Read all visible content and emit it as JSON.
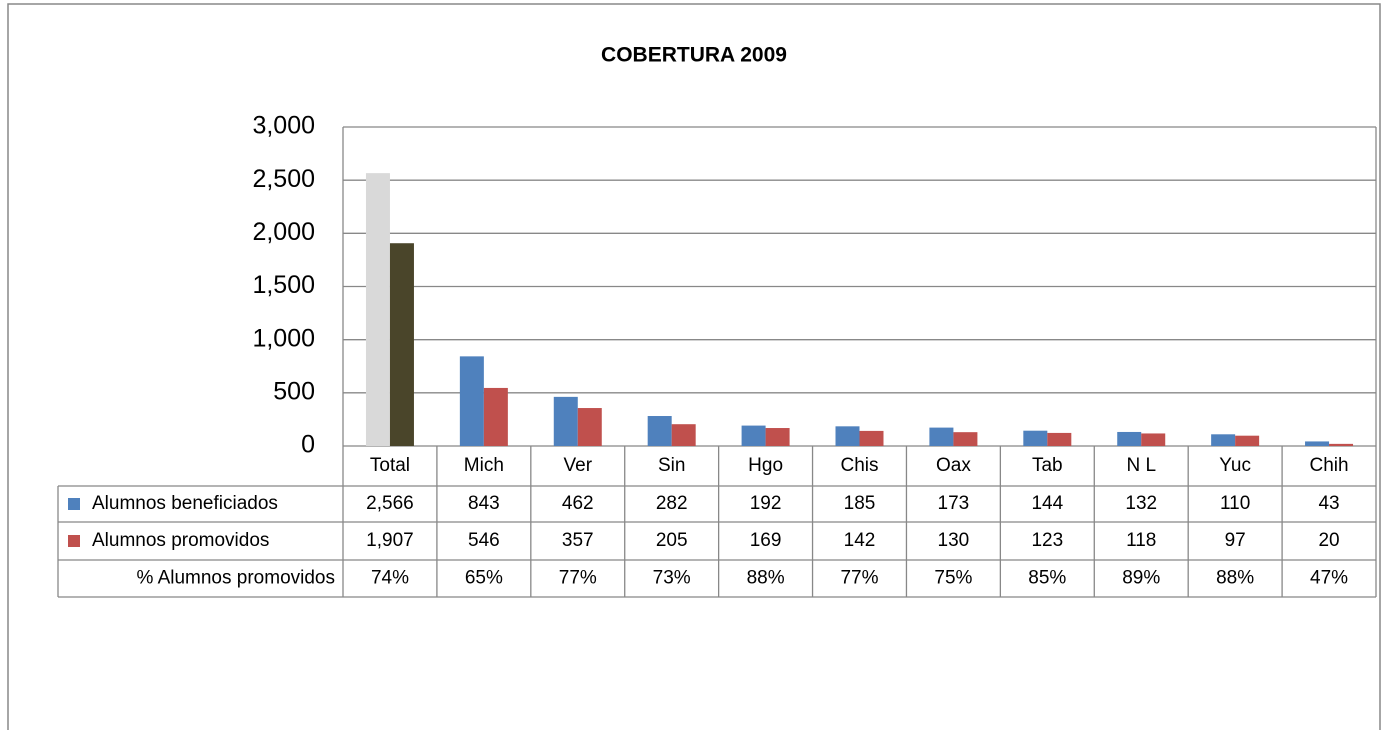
{
  "chart_data": {
    "type": "bar",
    "title": "COBERTURA 2009",
    "categories": [
      "Total",
      "Mich",
      "Ver",
      "Sin",
      "Hgo",
      "Chis",
      "Oax",
      "Tab",
      "N L",
      "Yuc",
      "Chih"
    ],
    "series": [
      {
        "name": "Alumnos beneficiados",
        "color": "#4f81bd",
        "total_color": "#d9d9d9",
        "values": [
          2566,
          843,
          462,
          282,
          192,
          185,
          173,
          144,
          132,
          110,
          43
        ],
        "value_labels": [
          "2,566",
          "843",
          "462",
          "282",
          "192",
          "185",
          "173",
          "144",
          "132",
          "110",
          "43"
        ]
      },
      {
        "name": "Alumnos promovidos",
        "color": "#c0504d",
        "total_color": "#4a452a",
        "values": [
          1907,
          546,
          357,
          205,
          169,
          142,
          130,
          123,
          118,
          97,
          20
        ],
        "value_labels": [
          "1,907",
          "546",
          "357",
          "205",
          "169",
          "142",
          "130",
          "123",
          "118",
          "97",
          "20"
        ]
      }
    ],
    "percent_row": {
      "name": "% Alumnos promovidos",
      "values": [
        74,
        65,
        77,
        73,
        88,
        77,
        75,
        85,
        89,
        88,
        47
      ],
      "value_labels": [
        "74%",
        "65%",
        "77%",
        "73%",
        "88%",
        "77%",
        "75%",
        "85%",
        "89%",
        "88%",
        "47%"
      ]
    },
    "ylim": [
      0,
      3000
    ],
    "yticks": [
      0,
      500,
      {
        "value": 1000,
        "label": "1,000"
      },
      {
        "value": 1500,
        "label": "1,500"
      },
      {
        "value": 2000,
        "label": "2,000"
      },
      {
        "value": 2500,
        "label": "2,500"
      },
      {
        "value": 3000,
        "label": "3,000"
      }
    ],
    "grid": true
  }
}
